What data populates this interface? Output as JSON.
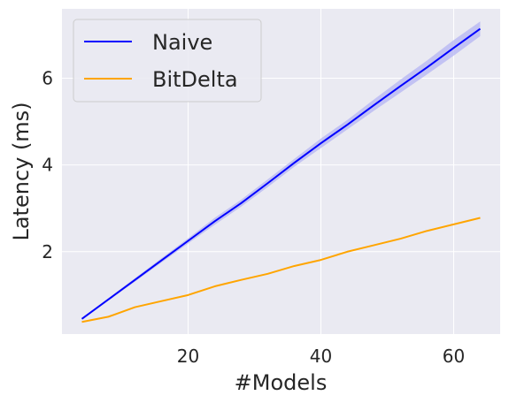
{
  "chart_data": {
    "type": "line",
    "xlabel": "#Models",
    "ylabel": "Latency (ms)",
    "xlim": [
      1.0,
      67.0
    ],
    "ylim": [
      0.1,
      7.6
    ],
    "xticks": [
      20,
      40,
      60
    ],
    "yticks": [
      2,
      4,
      6
    ],
    "grid": true,
    "legend_position": "top-left",
    "background": "#eaeaf2",
    "x": [
      4,
      8,
      12,
      16,
      20,
      24,
      28,
      32,
      36,
      40,
      44,
      48,
      52,
      56,
      60,
      64
    ],
    "series": [
      {
        "name": "Naive",
        "color": "#0000ff",
        "band_color": "#b8b8f2",
        "values": [
          0.45,
          0.9,
          1.35,
          1.8,
          2.25,
          2.7,
          3.12,
          3.58,
          4.05,
          4.5,
          4.93,
          5.38,
          5.82,
          6.25,
          6.7,
          7.14
        ],
        "lower": [
          0.43,
          0.87,
          1.31,
          1.75,
          2.19,
          2.62,
          3.04,
          3.49,
          3.96,
          4.39,
          4.82,
          5.25,
          5.67,
          6.09,
          6.52,
          6.97
        ],
        "upper": [
          0.47,
          0.93,
          1.39,
          1.85,
          2.31,
          2.78,
          3.2,
          3.67,
          4.14,
          4.61,
          5.04,
          5.51,
          5.97,
          6.41,
          6.88,
          7.31
        ]
      },
      {
        "name": "BitDelta",
        "color": "#ffa500",
        "values": [
          0.38,
          0.5,
          0.72,
          0.86,
          1.0,
          1.2,
          1.35,
          1.49,
          1.67,
          1.81,
          2.0,
          2.15,
          2.3,
          2.48,
          2.63,
          2.78
        ]
      }
    ]
  }
}
